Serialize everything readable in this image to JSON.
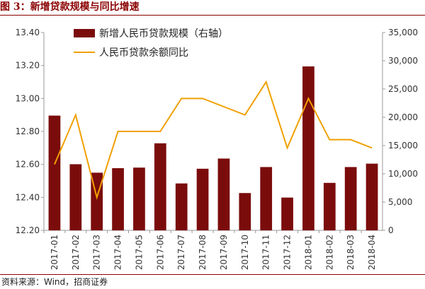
{
  "figure": {
    "title": "图 3：新增贷款规模与同比增速",
    "source": "资料来源：Wind，招商证券"
  },
  "chart_data": {
    "type": "bar+line",
    "categories": [
      "2017-01",
      "2017-02",
      "2017-03",
      "2017-04",
      "2017-05",
      "2017-06",
      "2017-07",
      "2017-08",
      "2017-09",
      "2017-10",
      "2017-11",
      "2017-12",
      "2018-01",
      "2018-02",
      "2018-03",
      "2018-04"
    ],
    "series": [
      {
        "name": "新增人民币贷款规模（右轴）",
        "type": "bar",
        "axis": "right",
        "color": "#7b0c0c",
        "values": [
          20300,
          11700,
          10200,
          11000,
          11100,
          15400,
          8300,
          10900,
          12700,
          6600,
          11200,
          5800,
          29000,
          8400,
          11200,
          11800
        ]
      },
      {
        "name": "人民币贷款余额同比",
        "type": "line",
        "axis": "left",
        "color": "#f0a000",
        "values": [
          12.6,
          12.9,
          12.4,
          12.8,
          12.8,
          12.8,
          13.0,
          13.0,
          12.95,
          12.9,
          13.1,
          12.7,
          13.0,
          12.75,
          12.75,
          12.7
        ]
      }
    ],
    "y_left": {
      "min": 12.2,
      "max": 13.4,
      "ticks": [
        "12.20",
        "12.40",
        "12.60",
        "12.80",
        "13.00",
        "13.20",
        "13.40"
      ]
    },
    "y_right": {
      "min": 0,
      "max": 35000,
      "ticks": [
        "0",
        "5,000",
        "10,000",
        "15,000",
        "20,000",
        "25,000",
        "30,000",
        "35,000"
      ]
    },
    "grid": false,
    "legend": "top-center"
  }
}
